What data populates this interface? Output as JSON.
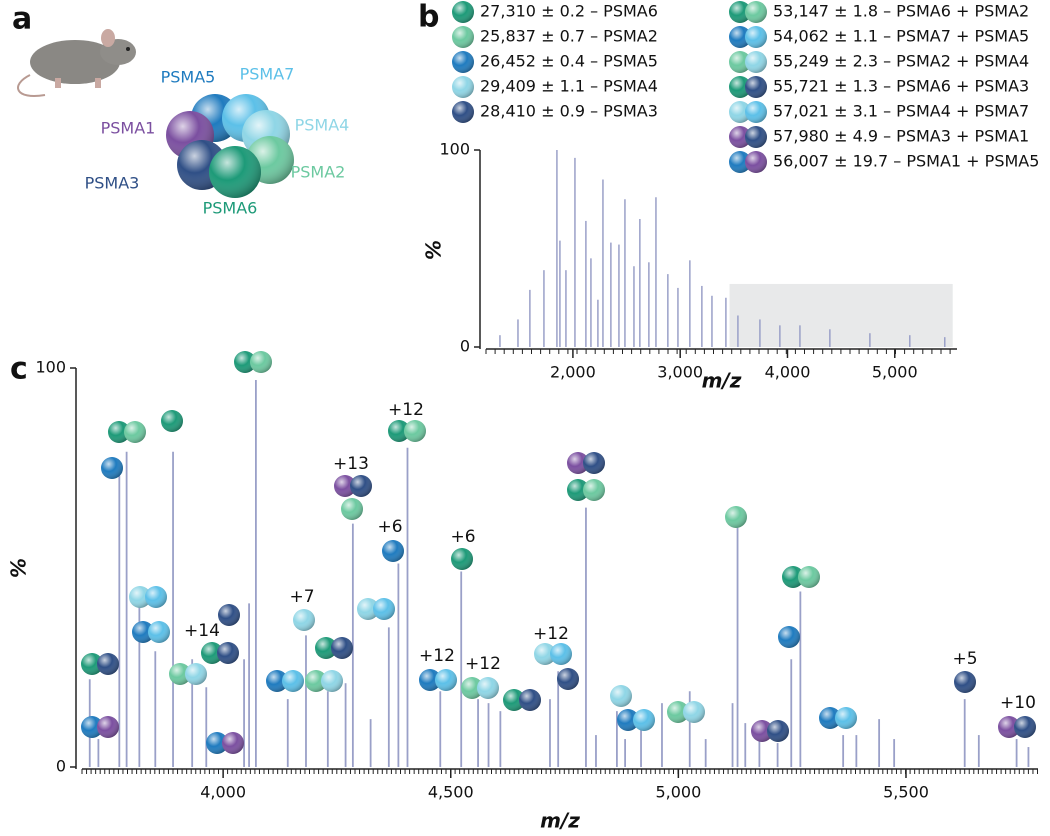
{
  "panels": [
    "a",
    "b",
    "c"
  ],
  "subunits": [
    {
      "name": "PSMA5",
      "color": "#1f7bbf"
    },
    {
      "name": "PSMA7",
      "color": "#5cc0e8"
    },
    {
      "name": "PSMA4",
      "color": "#8fd6e6"
    },
    {
      "name": "PSMA2",
      "color": "#6cc9a0"
    },
    {
      "name": "PSMA1",
      "color": "#7b4fa0"
    },
    {
      "name": "PSMA3",
      "color": "#2f4f86"
    },
    {
      "name": "PSMA6",
      "color": "#1d9a78"
    }
  ],
  "legend": [
    {
      "text": "27,310 ± 0.2 – PSMA6",
      "colors": [
        "#1d9a78"
      ]
    },
    {
      "text": "25,837 ± 0.7 – PSMA2",
      "colors": [
        "#6cc9a0"
      ]
    },
    {
      "text": "26,452 ± 0.4 – PSMA5",
      "colors": [
        "#1f7bbf"
      ]
    },
    {
      "text": "29,409 ± 1.1 – PSMA4",
      "colors": [
        "#8fd6e6"
      ]
    },
    {
      "text": "28,410 ± 0.9 – PSMA3",
      "colors": [
        "#2f4f86"
      ]
    },
    {
      "text": "53,147 ± 1.8 – PSMA6 + PSMA2",
      "colors": [
        "#1d9a78",
        "#6cc9a0"
      ]
    },
    {
      "text": "54,062 ± 1.1 – PSMA7 + PSMA5",
      "colors": [
        "#1f7bbf",
        "#5cc0e8"
      ]
    },
    {
      "text": "55,249 ± 2.3 – PSMA2 + PSMA4",
      "colors": [
        "#6cc9a0",
        "#8fd6e6"
      ]
    },
    {
      "text": "55,721 ± 1.3 – PSMA6 + PSMA3",
      "colors": [
        "#1d9a78",
        "#2f4f86"
      ]
    },
    {
      "text": "57,021 ± 3.1 – PSMA4 + PSMA7",
      "colors": [
        "#8fd6e6",
        "#5cc0e8"
      ]
    },
    {
      "text": "57,980 ± 4.9 – PSMA3 + PSMA1",
      "colors": [
        "#7b4fa0",
        "#2f4f86"
      ]
    },
    {
      "text": "56,007 ± 19.7 – PSMA1 + PSMA5",
      "colors": [
        "#1f7bbf",
        "#7b4fa0"
      ]
    }
  ],
  "chart_data": [
    {
      "type": "spectrum",
      "x": [
        1320,
        1488,
        1599,
        1730,
        1851,
        1879,
        1935,
        2019,
        2121,
        2168,
        2233,
        2280,
        2354,
        2429,
        2485,
        2569,
        2624,
        2708,
        2774,
        2885,
        2979,
        3090,
        3202,
        3296,
        3426,
        3538,
        3743,
        3929,
        4116,
        4395,
        4768,
        5140,
        5466
      ],
      "values": [
        6,
        14,
        29,
        39,
        100,
        54,
        39,
        96,
        64,
        45,
        24,
        85,
        53,
        52,
        75,
        41,
        65,
        43,
        76,
        37,
        30,
        44,
        31,
        26,
        25,
        16,
        14,
        11,
        11,
        9,
        7,
        6,
        5
      ],
      "color": "#9aa0c8",
      "xlim": [
        1190,
        5580
      ],
      "ylim": [
        0,
        100
      ],
      "xticks": [
        {
          "value": 2000,
          "label": "2,000"
        },
        {
          "value": 3000,
          "label": "3,000"
        },
        {
          "value": 4000,
          "label": "4,000"
        },
        {
          "value": 5000,
          "label": "5,000"
        }
      ],
      "yticks": [
        0,
        100
      ],
      "xlabel": "m/z",
      "ylabel": "%",
      "highlight": {
        "xlim": [
          3460,
          5540
        ],
        "ylim": [
          0,
          32
        ],
        "color": "#e8e9ea"
      }
    },
    {
      "type": "spectrum",
      "x": [
        3707,
        3726,
        3772,
        3788,
        3816,
        3851,
        3890,
        3932,
        3963,
        4046,
        4057,
        4072,
        4142,
        4182,
        4230,
        4269,
        4285,
        4324,
        4364,
        4385,
        4405,
        4477,
        4523,
        4560,
        4583,
        4609,
        4718,
        4736,
        4797,
        4819,
        4865,
        4883,
        4918,
        4964,
        5025,
        5060,
        5119,
        5130,
        5147,
        5178,
        5218,
        5248,
        5268,
        5362,
        5391,
        5441,
        5474,
        5629,
        5660,
        5743,
        5769
      ],
      "values": [
        22,
        7,
        73,
        79,
        44,
        29,
        79,
        27,
        20,
        27,
        41,
        97,
        17,
        33,
        19,
        21,
        61,
        12,
        35,
        51,
        80,
        19,
        49,
        17,
        16,
        14,
        17,
        24,
        65,
        8,
        14,
        7,
        13,
        16,
        19,
        7,
        16,
        60,
        11,
        9,
        6,
        27,
        44,
        8,
        8,
        12,
        7,
        17,
        8,
        7,
        5
      ],
      "color": "#9aa0c8",
      "xlim": [
        3690,
        5790
      ],
      "ylim": [
        0,
        100
      ],
      "xticks": [
        {
          "value": 4000,
          "label": "4,000"
        },
        {
          "value": 4500,
          "label": "4,500"
        },
        {
          "value": 5000,
          "label": "5,000"
        },
        {
          "value": 5500,
          "label": "5,500"
        }
      ],
      "yticks": [
        0,
        100
      ],
      "xlabel": "m/z",
      "ylabel": "%",
      "annotations": [
        "+14",
        "+7",
        "+13",
        "+6",
        "+12",
        "+6",
        "+12",
        "+12",
        "+12",
        "+5",
        "+10"
      ]
    }
  ]
}
